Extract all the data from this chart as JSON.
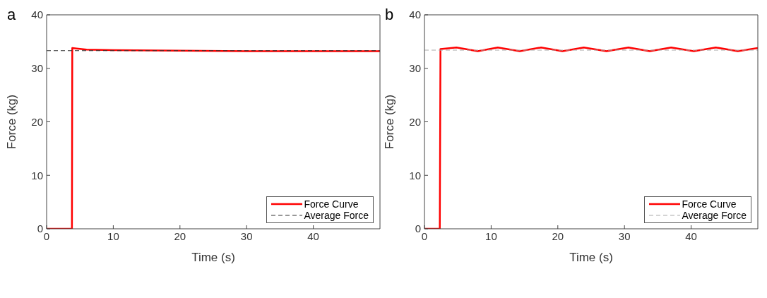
{
  "chart_data": [
    {
      "type": "line",
      "title": "a",
      "xlabel": "Time (s)",
      "ylabel": "Force (kg)",
      "xlim": [
        0,
        50
      ],
      "ylim": [
        0,
        40
      ],
      "xticks": [
        0,
        10,
        20,
        30,
        40
      ],
      "yticks": [
        0,
        10,
        20,
        30,
        40
      ],
      "legend": "bottom right",
      "series": [
        {
          "name": "Force Curve",
          "color": "#ff0000",
          "line_style": "solid",
          "x": [
            0,
            3.8,
            3.85,
            4.5,
            6,
            10,
            20,
            30,
            50
          ],
          "values": [
            0,
            0,
            33.8,
            33.7,
            33.5,
            33.4,
            33.3,
            33.2,
            33.2
          ]
        },
        {
          "name": "Average Force",
          "color": "#333333",
          "line_style": "dashed",
          "x": [
            0,
            50
          ],
          "values": [
            33.3,
            33.3
          ]
        }
      ]
    },
    {
      "type": "line",
      "title": "b",
      "xlabel": "Time (s)",
      "ylabel": "Force (kg)",
      "xlim": [
        0,
        50
      ],
      "ylim": [
        0,
        40
      ],
      "xticks": [
        0,
        10,
        20,
        30,
        40
      ],
      "yticks": [
        0,
        10,
        20,
        30,
        40
      ],
      "legend": "bottom right",
      "series": [
        {
          "name": "Force Curve",
          "color": "#ff0000",
          "line_style": "solid",
          "x": [
            0,
            2.3,
            2.4,
            4.8,
            8,
            11,
            14.3,
            17.5,
            20.7,
            23.9,
            27.3,
            30.6,
            33.8,
            37,
            40.4,
            43.7,
            47,
            50
          ],
          "values": [
            0,
            0,
            33.6,
            33.9,
            33.2,
            33.9,
            33.2,
            33.9,
            33.2,
            33.9,
            33.2,
            33.9,
            33.2,
            33.9,
            33.2,
            33.9,
            33.2,
            33.8
          ]
        },
        {
          "name": "Average Force",
          "color": "#aaaaaa",
          "line_style": "dashed",
          "x": [
            0,
            50
          ],
          "values": [
            33.4,
            33.4
          ]
        }
      ]
    }
  ]
}
